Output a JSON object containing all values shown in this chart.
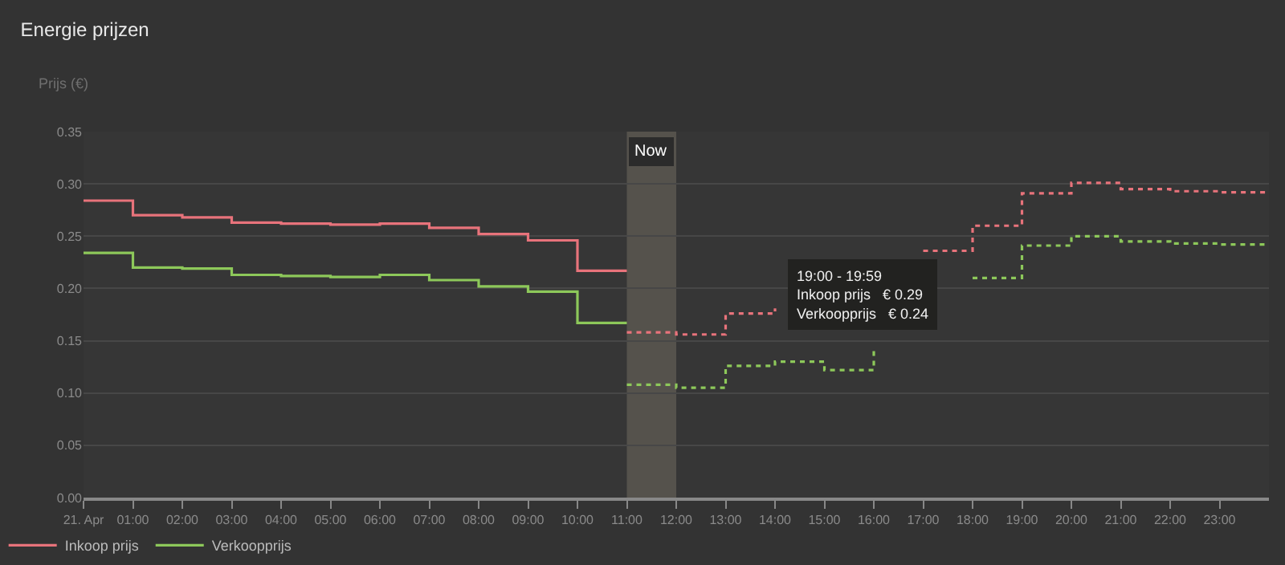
{
  "chart_data": {
    "type": "step",
    "title": "Energie prijzen",
    "ylabel": "Prijs (€)",
    "series": [
      {
        "name": "Inkoop prijs",
        "color": "#e8737b",
        "line_style": "solid",
        "x": [
          0,
          1,
          2,
          3,
          4,
          5,
          6,
          7,
          8,
          9,
          10,
          11
        ],
        "values": [
          0.284,
          0.27,
          0.268,
          0.263,
          0.262,
          0.261,
          0.262,
          0.258,
          0.252,
          0.246,
          0.217,
          0.217
        ]
      },
      {
        "name": "Verkoopprijs",
        "color": "#8dc85a",
        "line_style": "solid",
        "x": [
          0,
          1,
          2,
          3,
          4,
          5,
          6,
          7,
          8,
          9,
          10,
          11
        ],
        "values": [
          0.234,
          0.22,
          0.219,
          0.213,
          0.212,
          0.211,
          0.213,
          0.208,
          0.202,
          0.197,
          0.167,
          0.167
        ]
      },
      {
        "color": "#e8737b",
        "line_style": "dotted",
        "x": [
          11,
          12,
          13,
          14,
          15,
          16,
          17,
          18,
          19,
          20,
          21,
          22,
          23,
          24
        ],
        "values": [
          0.158,
          0.156,
          0.176,
          0.181,
          null,
          null,
          0.236,
          0.26,
          0.291,
          0.301,
          0.295,
          0.293,
          0.292,
          0.292
        ]
      },
      {
        "color": "#8dc85a",
        "line_style": "dotted",
        "x": [
          11,
          12,
          13,
          14,
          15,
          16,
          17,
          18,
          19,
          20,
          21,
          22,
          23,
          24
        ],
        "values": [
          0.108,
          0.105,
          0.126,
          0.13,
          0.122,
          0.14,
          null,
          0.21,
          0.241,
          0.25,
          0.245,
          0.243,
          0.242,
          0.242
        ]
      }
    ],
    "xlim": [
      0,
      24
    ],
    "xticks": [
      {
        "value": 0,
        "label": "21. Apr"
      },
      {
        "value": 1,
        "label": "01:00"
      },
      {
        "value": 2,
        "label": "02:00"
      },
      {
        "value": 3,
        "label": "03:00"
      },
      {
        "value": 4,
        "label": "04:00"
      },
      {
        "value": 5,
        "label": "05:00"
      },
      {
        "value": 6,
        "label": "06:00"
      },
      {
        "value": 7,
        "label": "07:00"
      },
      {
        "value": 8,
        "label": "08:00"
      },
      {
        "value": 9,
        "label": "09:00"
      },
      {
        "value": 10,
        "label": "10:00"
      },
      {
        "value": 11,
        "label": "11:00"
      },
      {
        "value": 12,
        "label": "12:00"
      },
      {
        "value": 13,
        "label": "13:00"
      },
      {
        "value": 14,
        "label": "14:00"
      },
      {
        "value": 15,
        "label": "15:00"
      },
      {
        "value": 16,
        "label": "16:00"
      },
      {
        "value": 17,
        "label": "17:00"
      },
      {
        "value": 18,
        "label": "18:00"
      },
      {
        "value": 19,
        "label": "19:00"
      },
      {
        "value": 20,
        "label": "20:00"
      },
      {
        "value": 21,
        "label": "21:00"
      },
      {
        "value": 22,
        "label": "22:00"
      },
      {
        "value": 23,
        "label": "23:00"
      }
    ],
    "ylim": [
      0,
      0.35
    ],
    "yticks": [
      {
        "value": 0,
        "label": "0.00"
      },
      {
        "value": 0.05,
        "label": "0.05"
      },
      {
        "value": 0.1,
        "label": "0.10"
      },
      {
        "value": 0.15,
        "label": "0.15"
      },
      {
        "value": 0.2,
        "label": "0.20"
      },
      {
        "value": 0.25,
        "label": "0.25"
      },
      {
        "value": 0.3,
        "label": "0.30"
      },
      {
        "value": 0.35,
        "label": "0.35"
      }
    ],
    "bands": [
      {
        "axis": "x",
        "from": 11,
        "to": 12,
        "label": "Now",
        "color": "#55524c"
      }
    ],
    "annotations": [
      "19:00 - 19:59\nInkoop prijs   € 0.29\nVerkoopprijs   € 0.24"
    ],
    "grid": "y",
    "legend": "bottom left",
    "marker": "none"
  }
}
